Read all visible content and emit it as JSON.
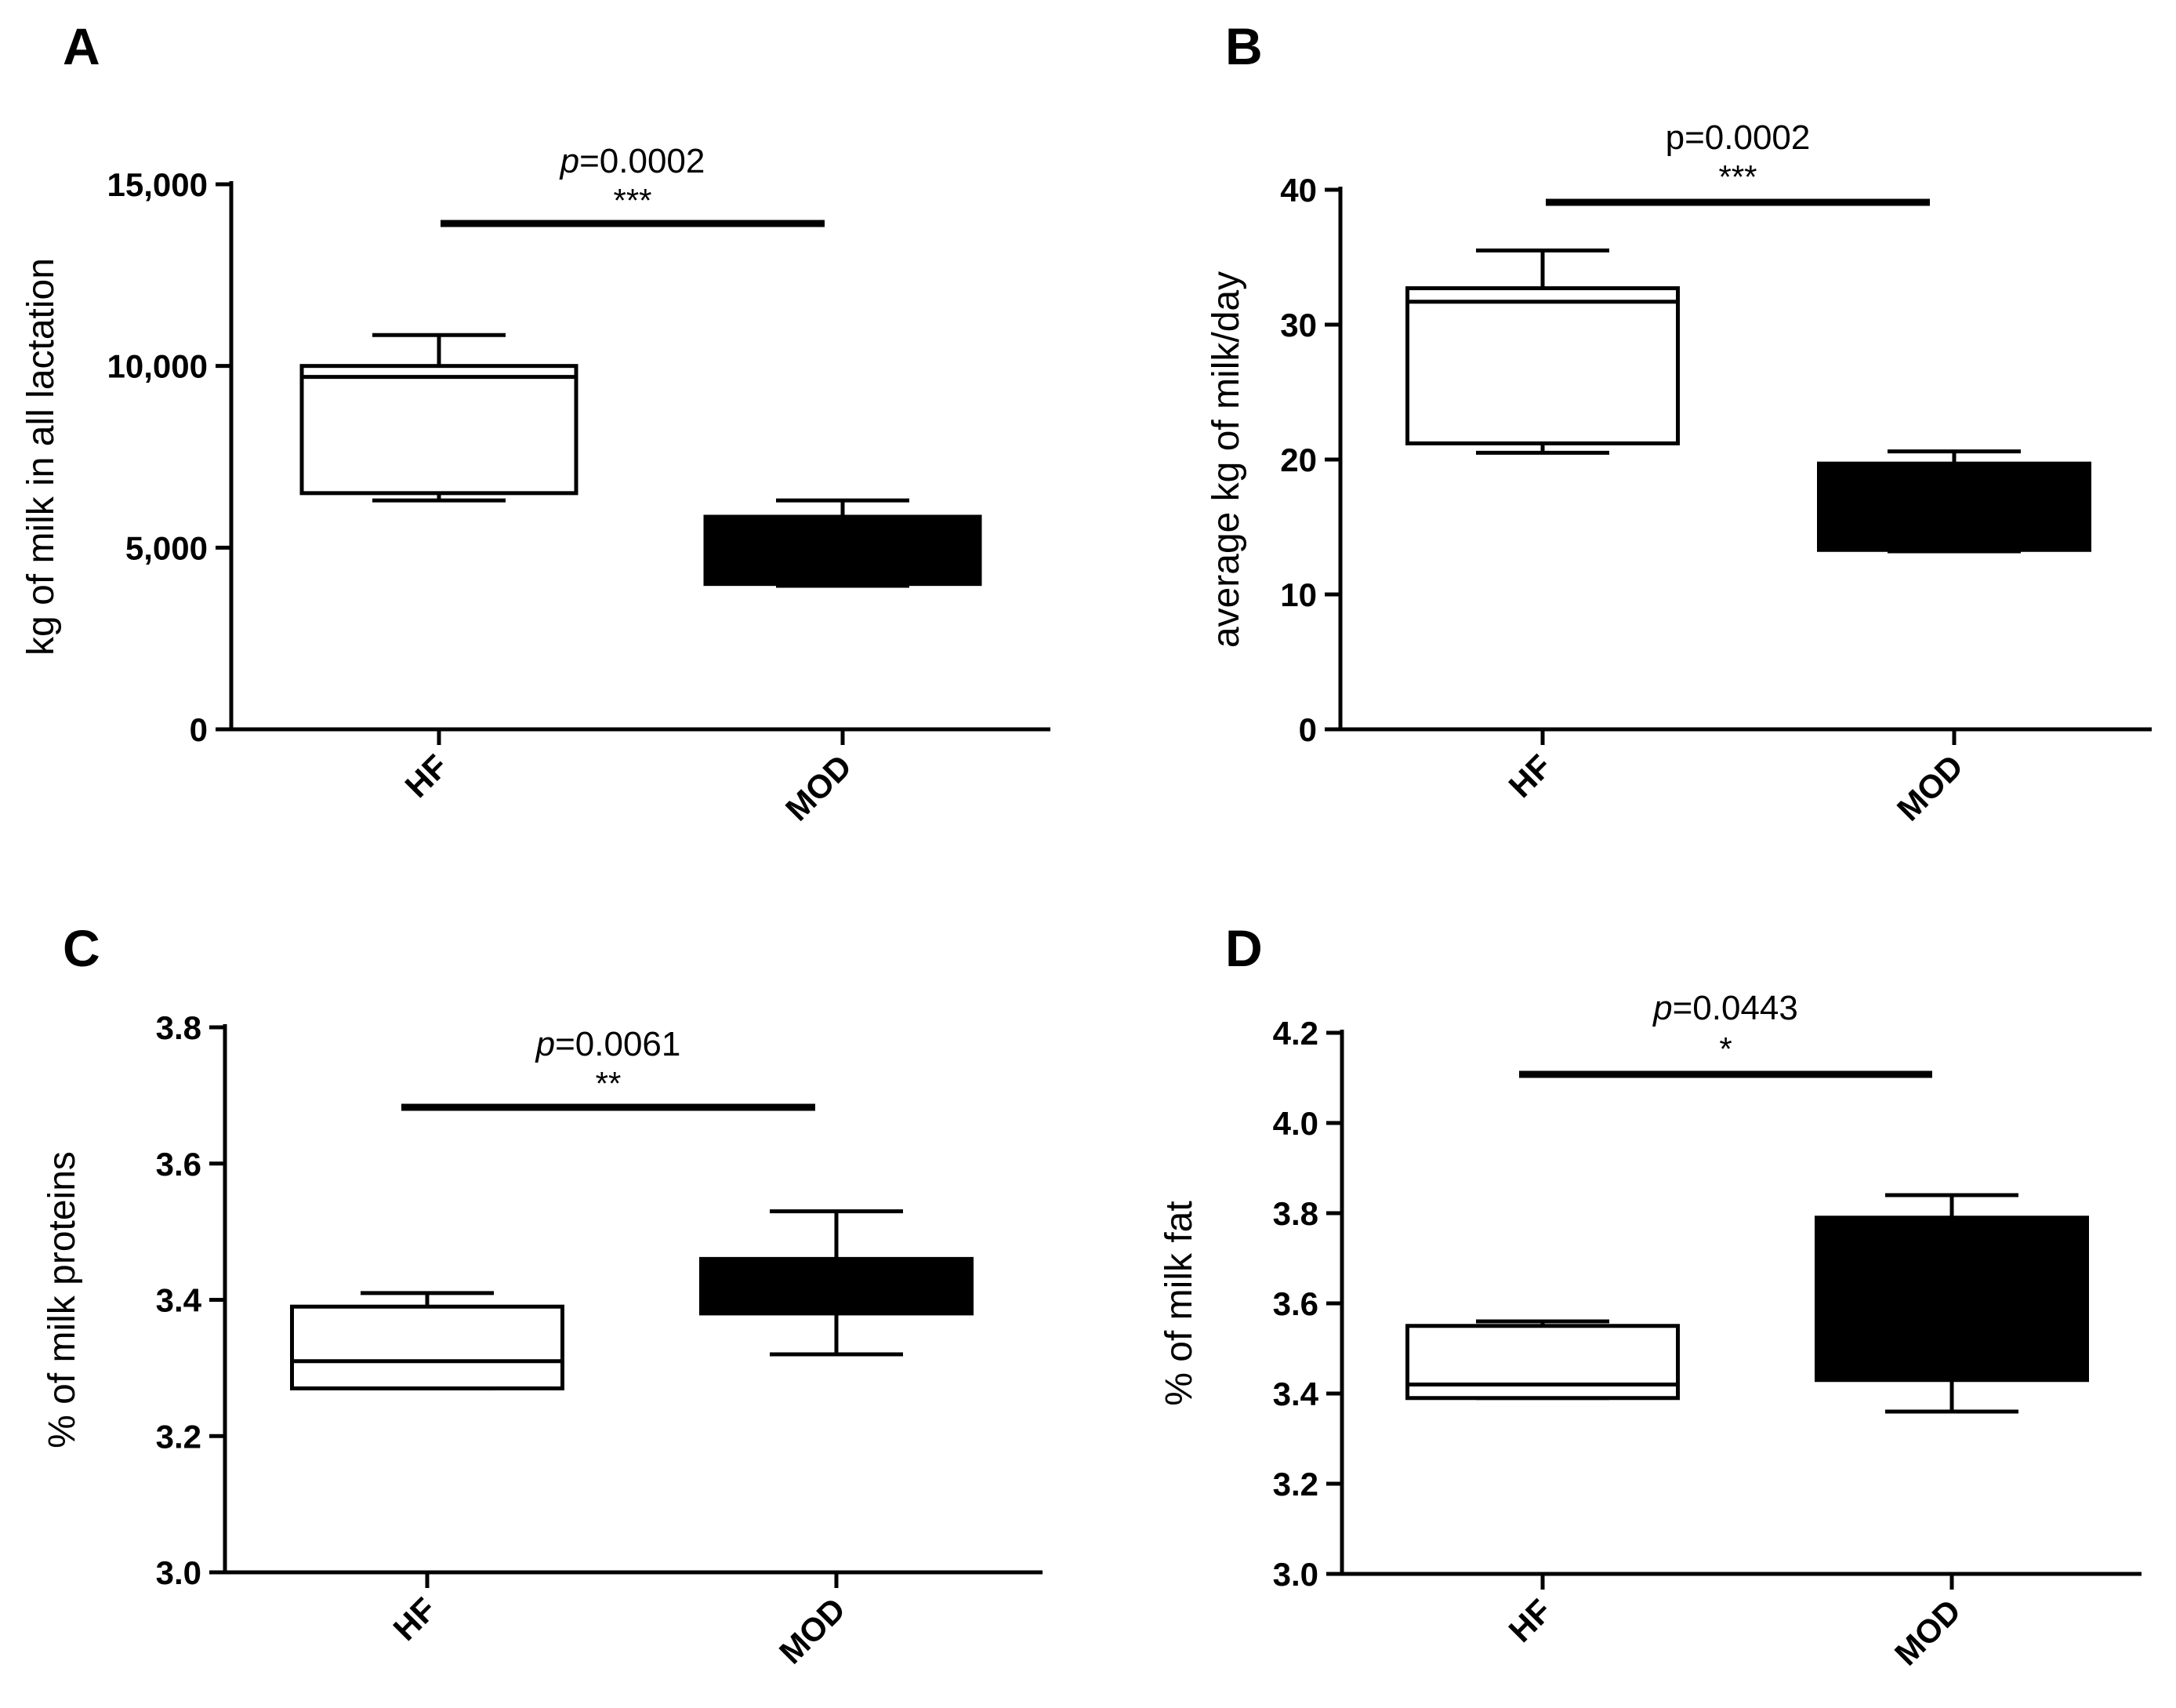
{
  "chart_data": [
    {
      "panel": "A",
      "type": "box",
      "ylabel": "kg of milk in all lactation",
      "ylim": [
        0,
        15000
      ],
      "yticks": [
        0,
        5000,
        10000,
        15000
      ],
      "ytick_labels": [
        "0",
        "5,000",
        "10,000",
        "15,000"
      ],
      "categories": [
        "HF",
        "MOD"
      ],
      "boxes": [
        {
          "group": "HF",
          "min": 6300,
          "q1": 6500,
          "median": 9700,
          "q3": 10000,
          "max": 10850,
          "fill": "#ffffff"
        },
        {
          "group": "MOD",
          "min": 3950,
          "q1": 4000,
          "median": 4950,
          "q3": 5850,
          "max": 6300,
          "fill": "#000000"
        }
      ],
      "significance": {
        "p_italic": "p",
        "p_value": "=0.0002",
        "stars": "***",
        "italic": true
      }
    },
    {
      "panel": "B",
      "type": "box",
      "ylabel": "average kg of milk/day",
      "ylim": [
        0,
        40
      ],
      "yticks": [
        0,
        10,
        20,
        30,
        40
      ],
      "ytick_labels": [
        "0",
        "10",
        "20",
        "30",
        "40"
      ],
      "categories": [
        "HF",
        "MOD"
      ],
      "boxes": [
        {
          "group": "HF",
          "min": 20.5,
          "q1": 21.2,
          "median": 31.7,
          "q3": 32.7,
          "max": 35.5,
          "fill": "#ffffff"
        },
        {
          "group": "MOD",
          "min": 13.2,
          "q1": 13.3,
          "median": 16.5,
          "q3": 19.7,
          "max": 20.6,
          "fill": "#000000"
        }
      ],
      "significance": {
        "p_italic": "",
        "p_value": "p=0.0002",
        "stars": "***",
        "italic": false
      }
    },
    {
      "panel": "C",
      "type": "box",
      "ylabel": "% of milk proteins",
      "ylim": [
        3.0,
        3.8
      ],
      "yticks": [
        3.0,
        3.2,
        3.4,
        3.6,
        3.8
      ],
      "ytick_labels": [
        "3.0",
        "3.2",
        "3.4",
        "3.6",
        "3.8"
      ],
      "categories": [
        "HF",
        "MOD"
      ],
      "boxes": [
        {
          "group": "HF",
          "min": 3.27,
          "q1": 3.27,
          "median": 3.31,
          "q3": 3.39,
          "max": 3.41,
          "fill": "#ffffff"
        },
        {
          "group": "MOD",
          "min": 3.32,
          "q1": 3.38,
          "median": 3.42,
          "q3": 3.46,
          "max": 3.53,
          "fill": "#000000"
        }
      ],
      "significance": {
        "p_italic": "p",
        "p_value": "=0.0061",
        "stars": "**",
        "italic": true
      }
    },
    {
      "panel": "D",
      "type": "box",
      "ylabel": "% of milk fat",
      "ylim": [
        3.0,
        4.2
      ],
      "yticks": [
        3.0,
        3.2,
        3.4,
        3.6,
        3.8,
        4.0,
        4.2
      ],
      "ytick_labels": [
        "3.0",
        "3.2",
        "3.4",
        "3.6",
        "3.8",
        "4.0",
        "4.2"
      ],
      "categories": [
        "HF",
        "MOD"
      ],
      "boxes": [
        {
          "group": "HF",
          "min": 3.39,
          "q1": 3.39,
          "median": 3.42,
          "q3": 3.55,
          "max": 3.56,
          "fill": "#ffffff"
        },
        {
          "group": "MOD",
          "min": 3.36,
          "q1": 3.43,
          "median": 3.6,
          "q3": 3.79,
          "max": 3.84,
          "fill": "#000000"
        }
      ],
      "significance": {
        "p_italic": "p",
        "p_value": "=0.0443",
        "stars": "*",
        "italic": true
      }
    }
  ]
}
